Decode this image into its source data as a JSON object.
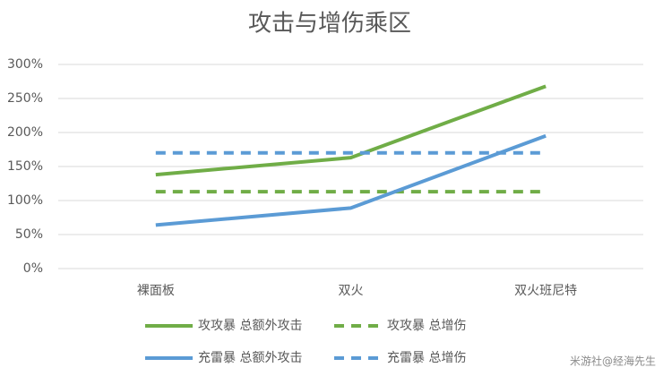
{
  "chart_data": {
    "type": "line",
    "title": "攻击与增伤乘区",
    "categories": [
      "裸面板",
      "双火",
      "双火班尼特"
    ],
    "series": [
      {
        "name": "攻攻暴 总额外攻击",
        "color": "#70ad47",
        "dashed": false,
        "values": [
          138,
          163,
          268
        ]
      },
      {
        "name": "攻攻暴 总增伤",
        "color": "#70ad47",
        "dashed": true,
        "values": [
          113,
          113,
          113
        ]
      },
      {
        "name": "充雷暴 总额外攻击",
        "color": "#5b9bd5",
        "dashed": false,
        "values": [
          64,
          89,
          195
        ]
      },
      {
        "name": "充雷暴 总增伤",
        "color": "#5b9bd5",
        "dashed": true,
        "values": [
          170,
          170,
          170
        ]
      }
    ],
    "ylim": [
      0,
      300
    ],
    "yticks": [
      {
        "value": 0,
        "label": "0%"
      },
      {
        "value": 50,
        "label": "50%"
      },
      {
        "value": 100,
        "label": "100%"
      },
      {
        "value": 150,
        "label": "150%"
      },
      {
        "value": 200,
        "label": "200%"
      },
      {
        "value": 250,
        "label": "250%"
      },
      {
        "value": 300,
        "label": "300%"
      }
    ],
    "grid": true,
    "legend": "bottom"
  },
  "watermark": "米游社@经海先生"
}
